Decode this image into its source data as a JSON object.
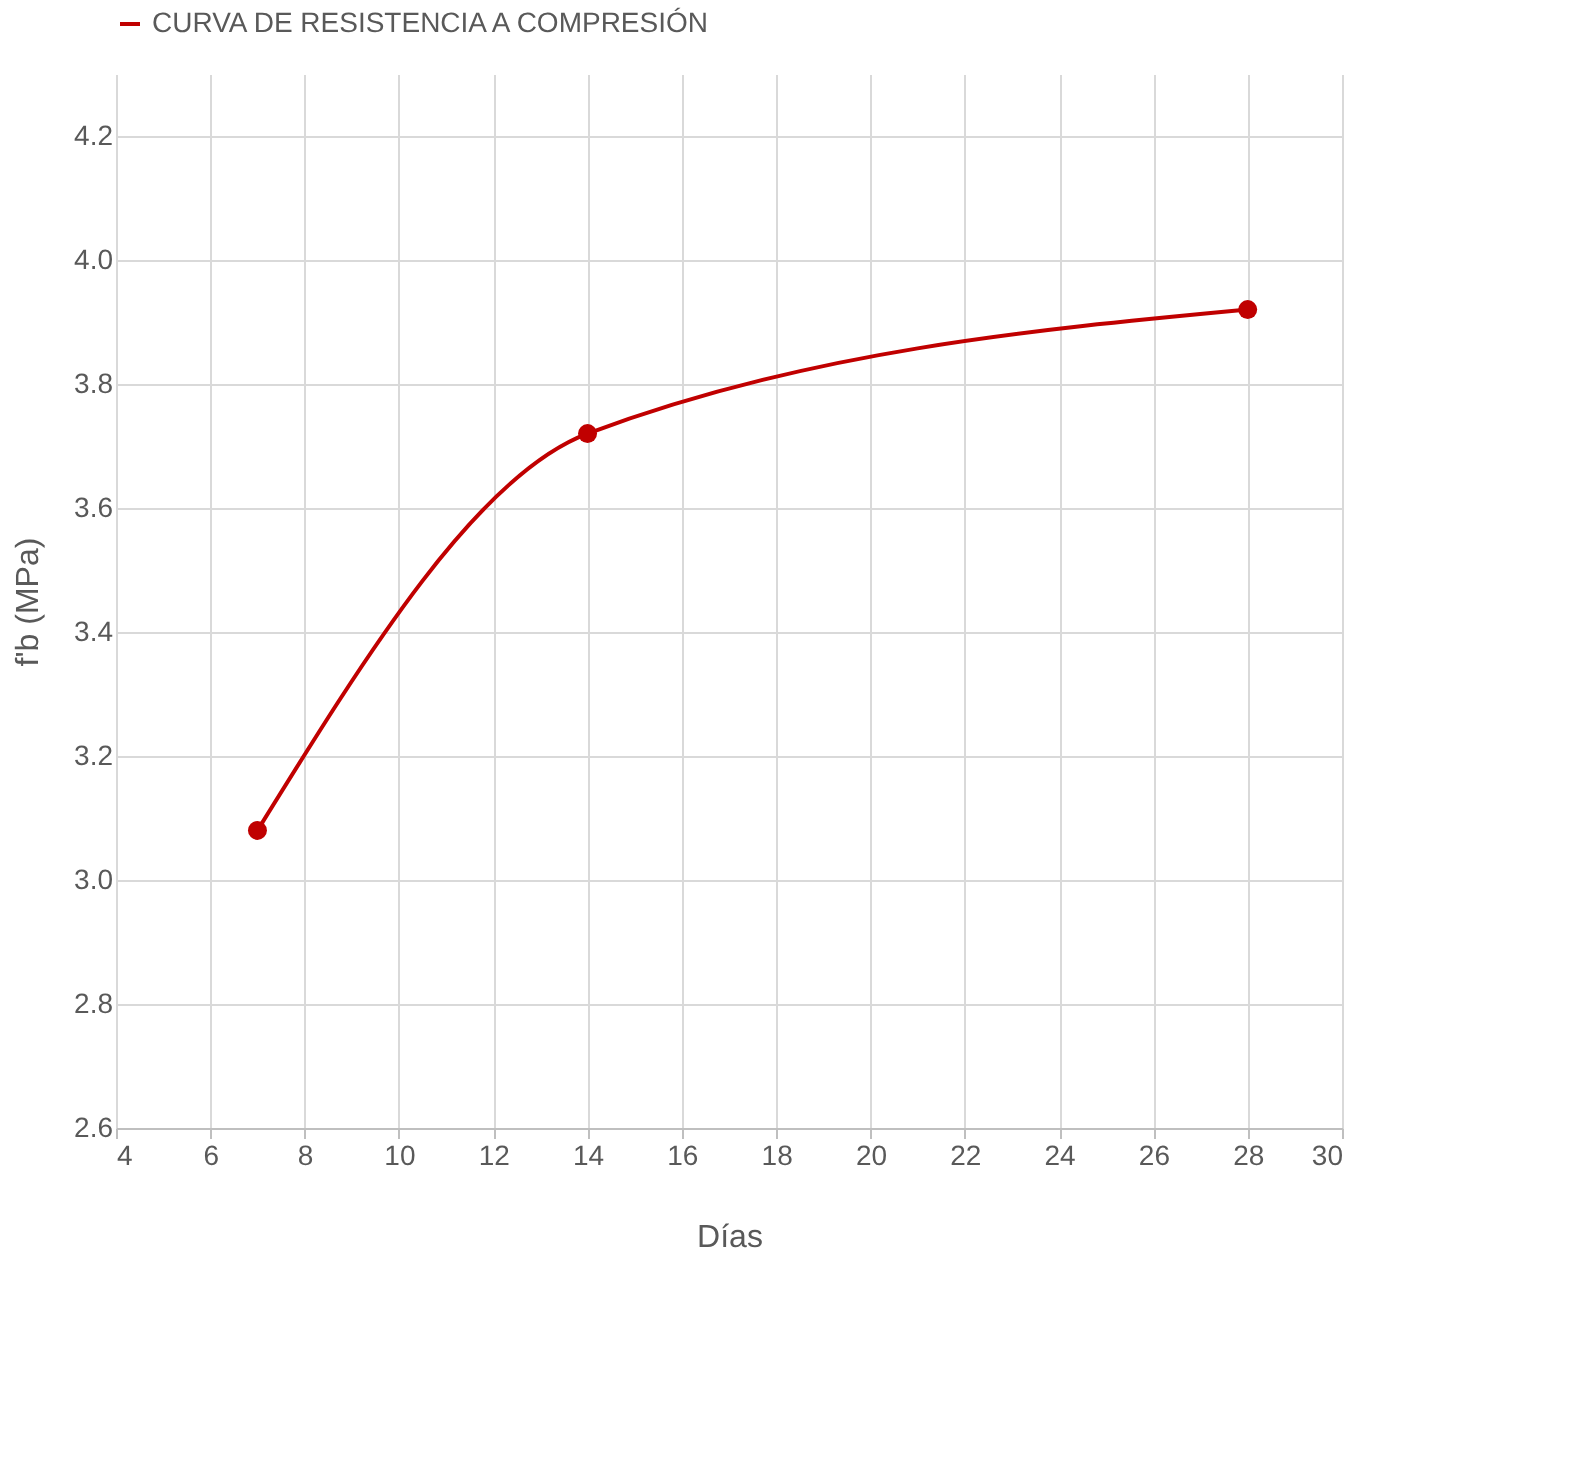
{
  "chart_data": {
    "type": "line",
    "xlabel": "Días",
    "ylabel": "f'b (MPa)",
    "x": [
      7,
      14,
      28
    ],
    "series": [
      {
        "name": "CURVA DE RESISTENCIA A COMPRESIÓN",
        "color": "#c00000",
        "values": [
          3.08,
          3.72,
          3.92
        ]
      }
    ],
    "xlim": [
      4,
      30
    ],
    "xticks": [
      4,
      6,
      8,
      10,
      12,
      14,
      16,
      18,
      20,
      22,
      24,
      26,
      28,
      30
    ],
    "ylim": [
      2.6,
      4.3
    ],
    "yticks": [
      2.6,
      2.8,
      {
        "value": 3,
        "label": "3.0"
      },
      3.2,
      3.4,
      3.6,
      3.8,
      {
        "value": 4,
        "label": "4.0"
      },
      4.2
    ],
    "grid": true,
    "legend": "top",
    "marker": "circle",
    "line_style": "solid"
  }
}
